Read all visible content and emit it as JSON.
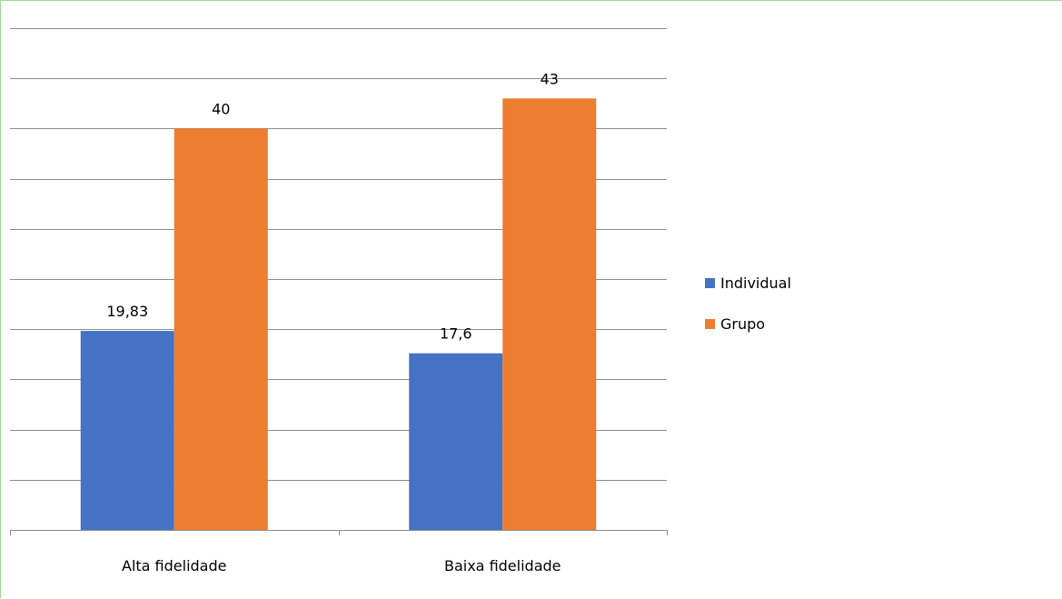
{
  "chart_data": {
    "type": "bar",
    "categories": [
      "Alta fidelidade",
      "Baixa fidelidade"
    ],
    "series": [
      {
        "name": "Individual",
        "values": [
          19.83,
          17.6
        ],
        "labels": [
          "19,83",
          "17,6"
        ],
        "color": "#4472c4"
      },
      {
        "name": "Grupo",
        "values": [
          40,
          43
        ],
        "labels": [
          "40",
          "43"
        ],
        "color": "#ed7d31"
      }
    ],
    "ylim": [
      0,
      50
    ],
    "grid": true,
    "legend_position": "right"
  }
}
